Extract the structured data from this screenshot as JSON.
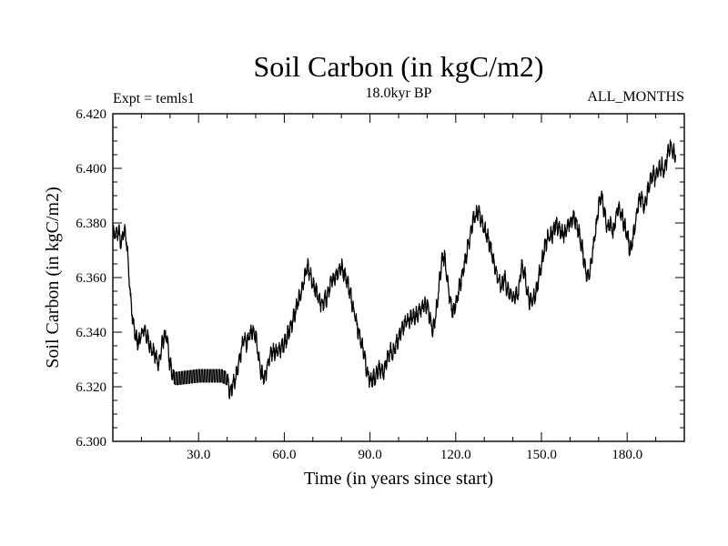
{
  "chart_data": {
    "type": "line",
    "title": "Soil Carbon (in kgC/m2)",
    "subtitle": "18.0kyr BP",
    "left_label": "Expt = temls1",
    "right_label": "ALL_MONTHS",
    "xlabel": "Time (in years since start)",
    "ylabel": "Soil Carbon (in kgC/m2)",
    "xlim": [
      0,
      200
    ],
    "ylim": [
      6.3,
      6.42
    ],
    "xticks": [
      30,
      60,
      90,
      120,
      150,
      180
    ],
    "xtick_labels": [
      "30.0",
      "60.0",
      "90.0",
      "120.0",
      "150.0",
      "180.0"
    ],
    "yticks": [
      6.3,
      6.32,
      6.34,
      6.36,
      6.38,
      6.4,
      6.42
    ],
    "ytick_labels": [
      "6.300",
      "6.320",
      "6.340",
      "6.360",
      "6.380",
      "6.400",
      "6.420"
    ],
    "line_color": "#000000",
    "monthly_noise_amplitude": 0.0025,
    "series": [
      {
        "name": "Soil Carbon",
        "points": [
          [
            0,
            6.375
          ],
          [
            2,
            6.377
          ],
          [
            3,
            6.372
          ],
          [
            4,
            6.378
          ],
          [
            5,
            6.372
          ],
          [
            6,
            6.355
          ],
          [
            7,
            6.344
          ],
          [
            8,
            6.338
          ],
          [
            9,
            6.336
          ],
          [
            10,
            6.339
          ],
          [
            11,
            6.341
          ],
          [
            12,
            6.338
          ],
          [
            13,
            6.335
          ],
          [
            14,
            6.333
          ],
          [
            15,
            6.331
          ],
          [
            16,
            6.328
          ],
          [
            17,
            6.334
          ],
          [
            18,
            6.339
          ],
          [
            19,
            6.337
          ],
          [
            20,
            6.328
          ],
          [
            21,
            6.324
          ],
          [
            22,
            6.323
          ],
          [
            30,
            6.324
          ],
          [
            38,
            6.324
          ],
          [
            40,
            6.323
          ],
          [
            41,
            6.318
          ],
          [
            42,
            6.321
          ],
          [
            43,
            6.323
          ],
          [
            44,
            6.328
          ],
          [
            45,
            6.334
          ],
          [
            46,
            6.337
          ],
          [
            47,
            6.336
          ],
          [
            48,
            6.339
          ],
          [
            49,
            6.341
          ],
          [
            50,
            6.339
          ],
          [
            51,
            6.331
          ],
          [
            52,
            6.325
          ],
          [
            53,
            6.323
          ],
          [
            54,
            6.327
          ],
          [
            55,
            6.331
          ],
          [
            56,
            6.333
          ],
          [
            58,
            6.333
          ],
          [
            60,
            6.336
          ],
          [
            62,
            6.341
          ],
          [
            64,
            6.348
          ],
          [
            66,
            6.355
          ],
          [
            68,
            6.364
          ],
          [
            69,
            6.361
          ],
          [
            70,
            6.357
          ],
          [
            72,
            6.353
          ],
          [
            73,
            6.35
          ],
          [
            75,
            6.353
          ],
          [
            76,
            6.357
          ],
          [
            78,
            6.361
          ],
          [
            80,
            6.364
          ],
          [
            82,
            6.359
          ],
          [
            84,
            6.35
          ],
          [
            86,
            6.34
          ],
          [
            88,
            6.332
          ],
          [
            89,
            6.325
          ],
          [
            90,
            6.322
          ],
          [
            92,
            6.324
          ],
          [
            93,
            6.327
          ],
          [
            94,
            6.325
          ],
          [
            95,
            6.326
          ],
          [
            96,
            6.33
          ],
          [
            97,
            6.333
          ],
          [
            98,
            6.332
          ],
          [
            100,
            6.338
          ],
          [
            102,
            6.343
          ],
          [
            104,
            6.345
          ],
          [
            106,
            6.346
          ],
          [
            108,
            6.349
          ],
          [
            110,
            6.35
          ],
          [
            111,
            6.345
          ],
          [
            112,
            6.34
          ],
          [
            113,
            6.346
          ],
          [
            114,
            6.355
          ],
          [
            115,
            6.366
          ],
          [
            116,
            6.368
          ],
          [
            117,
            6.36
          ],
          [
            118,
            6.352
          ],
          [
            119,
            6.347
          ],
          [
            120,
            6.35
          ],
          [
            122,
            6.36
          ],
          [
            124,
            6.37
          ],
          [
            126,
            6.381
          ],
          [
            128,
            6.384
          ],
          [
            130,
            6.378
          ],
          [
            132,
            6.372
          ],
          [
            134,
            6.362
          ],
          [
            136,
            6.356
          ],
          [
            137,
            6.36
          ],
          [
            138,
            6.356
          ],
          [
            140,
            6.352
          ],
          [
            142,
            6.355
          ],
          [
            143,
            6.364
          ],
          [
            144,
            6.362
          ],
          [
            145,
            6.355
          ],
          [
            146,
            6.351
          ],
          [
            148,
            6.354
          ],
          [
            149,
            6.36
          ],
          [
            150,
            6.365
          ],
          [
            151,
            6.37
          ],
          [
            152,
            6.374
          ],
          [
            154,
            6.376
          ],
          [
            155,
            6.38
          ],
          [
            156,
            6.378
          ],
          [
            158,
            6.376
          ],
          [
            160,
            6.38
          ],
          [
            161,
            6.382
          ],
          [
            162,
            6.381
          ],
          [
            163,
            6.377
          ],
          [
            164,
            6.372
          ],
          [
            165,
            6.366
          ],
          [
            166,
            6.36
          ],
          [
            167,
            6.363
          ],
          [
            168,
            6.37
          ],
          [
            169,
            6.377
          ],
          [
            170,
            6.386
          ],
          [
            171,
            6.39
          ],
          [
            172,
            6.384
          ],
          [
            173,
            6.378
          ],
          [
            174,
            6.38
          ],
          [
            175,
            6.376
          ],
          [
            176,
            6.382
          ],
          [
            177,
            6.386
          ],
          [
            178,
            6.383
          ],
          [
            179,
            6.379
          ],
          [
            180,
            6.376
          ],
          [
            181,
            6.37
          ],
          [
            182,
            6.374
          ],
          [
            183,
            6.38
          ],
          [
            184,
            6.388
          ],
          [
            185,
            6.39
          ],
          [
            186,
            6.386
          ],
          [
            187,
            6.391
          ],
          [
            188,
            6.395
          ],
          [
            189,
            6.398
          ],
          [
            190,
            6.396
          ],
          [
            191,
            6.4
          ],
          [
            192,
            6.401
          ],
          [
            193,
            6.399
          ],
          [
            194,
            6.404
          ],
          [
            195,
            6.408
          ],
          [
            196,
            6.406
          ],
          [
            197,
            6.405
          ]
        ]
      }
    ]
  }
}
